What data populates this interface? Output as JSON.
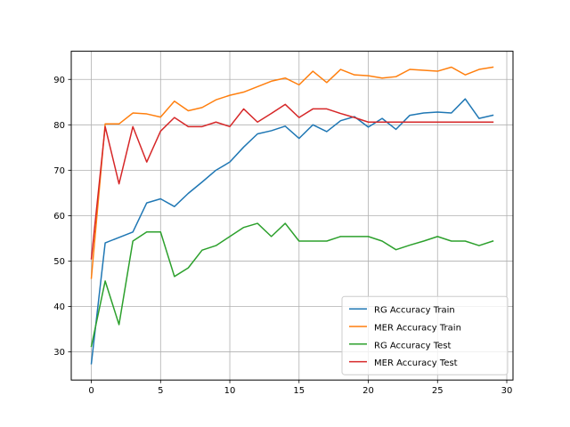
{
  "chart_data": {
    "type": "line",
    "title": "",
    "xlabel": "",
    "ylabel": "",
    "xlim": [
      -1.45,
      30.45
    ],
    "ylim": [
      23.8,
      96.2
    ],
    "xticks": [
      0,
      5,
      10,
      15,
      20,
      25,
      30
    ],
    "yticks": [
      30,
      40,
      50,
      60,
      70,
      80,
      90
    ],
    "grid": true,
    "legend_position": "lower right",
    "x": [
      0,
      1,
      2,
      3,
      4,
      5,
      6,
      7,
      8,
      9,
      10,
      11,
      12,
      13,
      14,
      15,
      16,
      17,
      18,
      19,
      20,
      21,
      22,
      23,
      24,
      25,
      26,
      27,
      28,
      29
    ],
    "series": [
      {
        "name": "RG Accuracy Train",
        "color": "#1f77b4",
        "values": [
          27.4,
          54.0,
          55.2,
          56.4,
          62.8,
          63.7,
          62.0,
          64.9,
          67.4,
          70.0,
          71.8,
          75.1,
          78.0,
          78.7,
          79.7,
          77.0,
          80.0,
          78.5,
          80.9,
          81.8,
          79.5,
          81.4,
          79.0,
          82.1,
          82.6,
          82.8,
          82.6,
          85.7,
          81.4,
          82.1
        ]
      },
      {
        "name": "MER Accuracy Train",
        "color": "#ff7f0e",
        "values": [
          46.2,
          80.2,
          80.2,
          82.6,
          82.4,
          81.7,
          85.2,
          83.1,
          83.8,
          85.5,
          86.5,
          87.2,
          88.4,
          89.6,
          90.3,
          88.8,
          91.8,
          89.3,
          92.2,
          91.0,
          90.8,
          90.3,
          90.6,
          92.2,
          92.0,
          91.8,
          92.7,
          91.0,
          92.2,
          92.7
        ]
      },
      {
        "name": "RG Accuracy Test",
        "color": "#2ca02c",
        "values": [
          31.2,
          45.6,
          36.0,
          54.4,
          56.4,
          56.4,
          46.6,
          48.5,
          52.4,
          53.4,
          55.4,
          57.4,
          58.3,
          55.4,
          58.3,
          54.4,
          54.4,
          54.4,
          55.4,
          55.4,
          55.4,
          54.4,
          52.5,
          53.5,
          54.4,
          55.4,
          54.4,
          54.4,
          53.4,
          54.4
        ]
      },
      {
        "name": "MER Accuracy Test",
        "color": "#d62728",
        "values": [
          50.5,
          79.6,
          67.0,
          79.6,
          71.8,
          78.6,
          81.6,
          79.6,
          79.6,
          80.6,
          79.6,
          83.5,
          80.6,
          82.5,
          84.5,
          81.6,
          83.5,
          83.5,
          82.5,
          81.6,
          80.6,
          80.6,
          80.6,
          80.6,
          80.6,
          80.6,
          80.6,
          80.6,
          80.6,
          80.6
        ]
      }
    ]
  }
}
